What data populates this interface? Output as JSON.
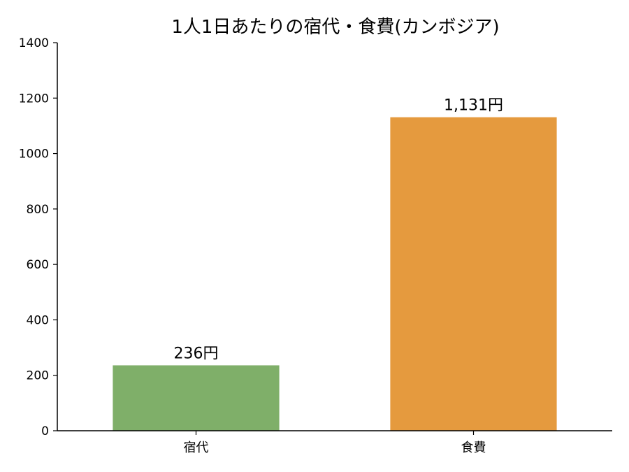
{
  "chart_data": {
    "type": "bar",
    "title": "1人1日あたりの宿代・食費(カンボジア)",
    "xlabel": "",
    "ylabel": "",
    "categories": [
      "宿代",
      "食費"
    ],
    "values": [
      236,
      1131
    ],
    "data_labels": [
      "236円",
      "1,131円"
    ],
    "colors": [
      "#7faf69",
      "#e59a3e"
    ],
    "ylim": [
      0,
      1400
    ],
    "yticks": [
      0,
      200,
      400,
      600,
      800,
      1000,
      1200,
      1400
    ],
    "grid": false,
    "legend": "none"
  }
}
